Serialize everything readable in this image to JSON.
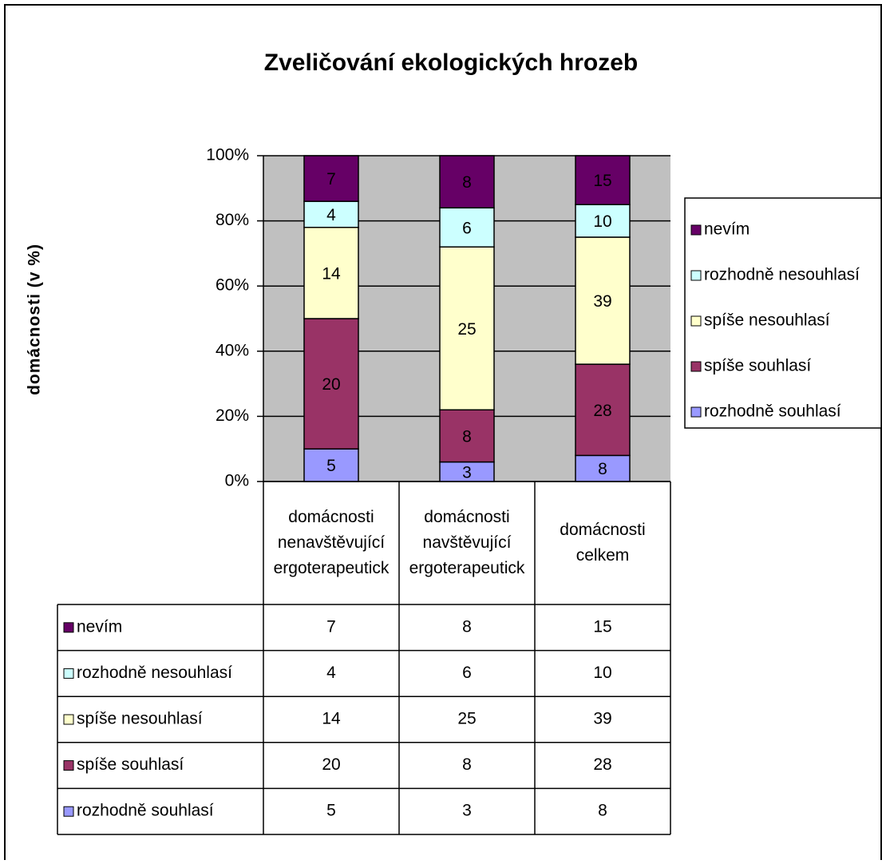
{
  "chart_data": {
    "type": "bar",
    "stacking": "percent",
    "title": "Zveličování ekologických hrozeb",
    "y_label": "domácnosti (v %)",
    "categories": [
      "domácnosti nenavštěvující ergoterapeutick",
      "domácnosti navštěvující ergoterapeutick",
      "domácnosti celkem"
    ],
    "series": [
      {
        "name": "rozhodně souhlasí",
        "color": "#9999ff",
        "values": [
          5,
          3,
          8
        ]
      },
      {
        "name": "spíše souhlasí",
        "color": "#993366",
        "values": [
          20,
          8,
          28
        ]
      },
      {
        "name": "spíše nesouhlasí",
        "color": "#ffffcc",
        "values": [
          14,
          25,
          39
        ]
      },
      {
        "name": "rozhodně nesouhlasí",
        "color": "#ccffff",
        "values": [
          4,
          6,
          10
        ]
      },
      {
        "name": "nevím",
        "color": "#660066",
        "values": [
          7,
          8,
          15
        ]
      }
    ],
    "ylim": [
      0,
      100
    ],
    "yticks": [
      {
        "value": 0,
        "label": "0%"
      },
      {
        "value": 20,
        "label": "20%"
      },
      {
        "value": 40,
        "label": "40%"
      },
      {
        "value": 60,
        "label": "60%"
      },
      {
        "value": 80,
        "label": "80%"
      },
      {
        "value": 100,
        "label": "100%"
      }
    ],
    "grid": true,
    "legend": "right",
    "data_table": true
  }
}
